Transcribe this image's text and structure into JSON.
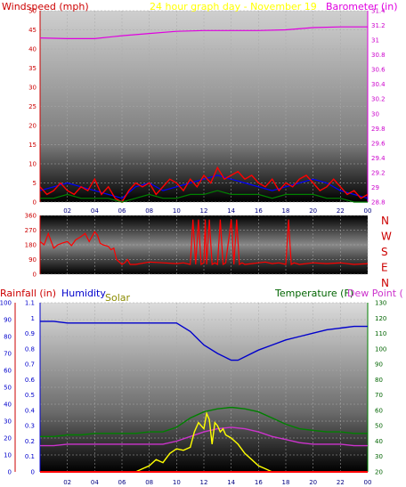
{
  "colors": {
    "wind": "#ff0000",
    "gust": "#0000ff",
    "avg_wind": "#008000",
    "barometer": "#e000e0",
    "title": "#ffff00",
    "rain": "#ff0000",
    "humidity": "#0000cc",
    "solar": "#ffff00",
    "temperature": "#008000",
    "dew_point": "#cc33cc",
    "hour_labels": "#000080"
  },
  "chart_data": [
    {
      "type": "line",
      "title": "24 hour graph day - November 19",
      "ylabel_left": "Windspeed (mph)",
      "ylabel_right": "Barometer (in)",
      "y_left_ticks": [
        "0",
        "5",
        "10",
        "15",
        "20",
        "25",
        "30",
        "35",
        "40",
        "45",
        "50"
      ],
      "y_right_ticks": [
        "28.8",
        "29",
        "29.2",
        "29.4",
        "29.6",
        "29.8",
        "30",
        "30.2",
        "30.4",
        "30.6",
        "30.8",
        "31",
        "31.2",
        "31.4"
      ],
      "ylim_left": [
        0,
        50
      ],
      "ylim_right": [
        28.8,
        31.4
      ],
      "x_ticks": [
        "02",
        "04",
        "06",
        "08",
        "10",
        "12",
        "14",
        "16",
        "18",
        "20",
        "22",
        "00"
      ],
      "xlim": [
        0,
        24
      ],
      "series": [
        {
          "role": "barometer",
          "axis": "right",
          "x": [
            0,
            2,
            4,
            6,
            8,
            10,
            12,
            14,
            16,
            18,
            20,
            22,
            24
          ],
          "values": [
            31.03,
            31.02,
            31.02,
            31.06,
            31.09,
            31.12,
            31.13,
            31.13,
            31.13,
            31.14,
            31.17,
            31.18,
            31.18
          ]
        },
        {
          "role": "gust",
          "axis": "left",
          "x": [
            0,
            1,
            2,
            3,
            4,
            5,
            6,
            7,
            8,
            9,
            10,
            11,
            12,
            13,
            14,
            15,
            16,
            17,
            18,
            19,
            20,
            21,
            22,
            23,
            24
          ],
          "values": [
            3,
            4,
            5,
            4,
            3,
            2,
            1,
            4,
            5,
            3,
            4,
            5,
            6,
            7,
            6,
            5,
            4,
            3,
            4,
            5,
            6,
            5,
            3,
            2,
            1
          ]
        },
        {
          "role": "wind",
          "axis": "left",
          "x": [
            0,
            0.5,
            1,
            1.5,
            2,
            2.5,
            3,
            3.5,
            4,
            4.5,
            5,
            5.5,
            6,
            6.5,
            7,
            7.5,
            8,
            8.5,
            9,
            9.5,
            10,
            10.5,
            11,
            11.5,
            12,
            12.5,
            13,
            13.5,
            14,
            14.5,
            15,
            15.5,
            16,
            16.5,
            17,
            17.5,
            18,
            18.5,
            19,
            19.5,
            20,
            20.5,
            21,
            21.5,
            22,
            22.5,
            23,
            23.5,
            24
          ],
          "values": [
            4,
            2,
            3,
            5,
            3,
            2,
            4,
            3,
            6,
            2,
            4,
            1,
            0,
            3,
            5,
            4,
            5,
            2,
            4,
            6,
            5,
            3,
            6,
            4,
            7,
            5,
            9,
            6,
            7,
            8,
            6,
            7,
            5,
            4,
            6,
            3,
            5,
            4,
            6,
            7,
            5,
            3,
            4,
            6,
            4,
            2,
            3,
            1,
            2
          ]
        },
        {
          "role": "avg_wind",
          "axis": "left",
          "x": [
            0,
            1,
            2,
            3,
            4,
            5,
            6,
            7,
            8,
            9,
            10,
            11,
            12,
            13,
            14,
            15,
            16,
            17,
            18,
            19,
            20,
            21,
            22,
            23,
            24
          ],
          "values": [
            1,
            1,
            2,
            1,
            1,
            1,
            0,
            1,
            2,
            1,
            1,
            2,
            2,
            3,
            2,
            2,
            2,
            1,
            2,
            2,
            2,
            1,
            1,
            0,
            0
          ]
        }
      ]
    },
    {
      "type": "line",
      "title": "",
      "ylabel_right": "N W S E N",
      "y_left_ticks": [
        "0",
        "90",
        "180",
        "270",
        "360"
      ],
      "ylim": [
        0,
        360
      ],
      "xlim": [
        0,
        24
      ],
      "series": [
        {
          "role": "wind_direction",
          "x": [
            0,
            0.3,
            0.6,
            1,
            1.3,
            1.6,
            2,
            2.3,
            2.6,
            3,
            3.3,
            3.6,
            4,
            4.2,
            4.4,
            4.6,
            5,
            5.2,
            5.4,
            5.6,
            6,
            6.2,
            6.4,
            6.6,
            7,
            8,
            9,
            10,
            10.5,
            11,
            11.2,
            11.4,
            11.6,
            11.8,
            12,
            12.1,
            12.2,
            12.4,
            12.6,
            12.8,
            13,
            13.2,
            13.4,
            13.6,
            14,
            14.2,
            14.4,
            14.6,
            14.8,
            15,
            15.5,
            16,
            16.5,
            17,
            17.5,
            18,
            18.2,
            18.4,
            18.6,
            19,
            20,
            21,
            22,
            23,
            24
          ],
          "values": [
            200,
            180,
            250,
            160,
            180,
            190,
            200,
            175,
            210,
            230,
            250,
            200,
            260,
            240,
            190,
            180,
            170,
            150,
            160,
            90,
            60,
            70,
            90,
            60,
            60,
            75,
            70,
            65,
            70,
            60,
            335,
            60,
            335,
            60,
            70,
            335,
            60,
            335,
            60,
            70,
            60,
            335,
            60,
            70,
            335,
            60,
            335,
            60,
            70,
            60,
            65,
            70,
            75,
            65,
            70,
            60,
            335,
            60,
            70,
            60,
            70,
            65,
            70,
            60,
            65
          ]
        }
      ]
    },
    {
      "type": "line",
      "title": "",
      "ylabel_left": "Rainfall (in)",
      "ylabel_humidity": "Humidity",
      "ylabel_solar": "Solar",
      "ylabel_right": "Temperature (F)",
      "ylabel_dew": "Dew Point (",
      "y_rain_ticks": [
        "0",
        "0.1",
        "0.2",
        "0.3",
        "0.4",
        "0.5",
        "0.6",
        "0.7",
        "0.8",
        "0.9",
        "1",
        "1.1"
      ],
      "y_humidity_ticks": [
        "0",
        "10",
        "20",
        "30",
        "40",
        "50",
        "60",
        "70",
        "80",
        "90",
        "100"
      ],
      "y_temp_ticks": [
        "20",
        "30",
        "40",
        "50",
        "60",
        "70",
        "80",
        "90",
        "100",
        "110",
        "120",
        "130"
      ],
      "ylim_humidity": [
        0,
        100
      ],
      "ylim_temp": [
        20,
        130
      ],
      "ylim_rain": [
        0,
        1.1
      ],
      "x_ticks": [
        "02",
        "04",
        "06",
        "08",
        "10",
        "12",
        "14",
        "16",
        "18",
        "20",
        "22",
        "00"
      ],
      "xlim": [
        0,
        24
      ],
      "series": [
        {
          "role": "humidity",
          "axis": "humidity",
          "x": [
            0,
            1,
            2,
            3,
            4,
            5,
            6,
            7,
            8,
            9,
            10,
            11,
            12,
            13,
            14,
            14.5,
            15,
            16,
            17,
            18,
            19,
            20,
            21,
            22,
            23,
            24
          ],
          "values": [
            89,
            89,
            88,
            88,
            88,
            88,
            88,
            88,
            88,
            88,
            88,
            83,
            75,
            70,
            66,
            66,
            68,
            72,
            75,
            78,
            80,
            82,
            84,
            85,
            86,
            86
          ]
        },
        {
          "role": "temperature",
          "axis": "temp",
          "x": [
            0,
            1,
            2,
            3,
            4,
            5,
            6,
            7,
            8,
            9,
            10,
            11,
            12,
            13,
            14,
            15,
            16,
            17,
            18,
            19,
            20,
            21,
            22,
            23,
            24
          ],
          "values": [
            43,
            43,
            44,
            44,
            45,
            45,
            45,
            45,
            46,
            46,
            49,
            55,
            59,
            61,
            62,
            61,
            59,
            55,
            51,
            48,
            47,
            46,
            46,
            45,
            45
          ]
        },
        {
          "role": "dew_point",
          "axis": "temp",
          "x": [
            0,
            1,
            2,
            3,
            4,
            5,
            6,
            7,
            8,
            9,
            10,
            11,
            12,
            13,
            14,
            15,
            16,
            17,
            18,
            19,
            20,
            21,
            22,
            23,
            24
          ],
          "values": [
            37,
            37,
            38,
            38,
            38,
            38,
            38,
            38,
            38,
            38,
            40,
            43,
            46,
            48,
            49,
            48,
            46,
            43,
            41,
            39,
            38,
            38,
            38,
            37,
            37
          ]
        },
        {
          "role": "solar",
          "axis": "rain",
          "x": [
            7.0,
            7.5,
            8,
            8.5,
            9,
            9.5,
            10,
            10.5,
            11,
            11.3,
            11.6,
            12,
            12.2,
            12.4,
            12.6,
            12.8,
            13,
            13.2,
            13.4,
            13.6,
            14,
            14.5,
            15,
            15.5,
            16,
            16.5,
            17
          ],
          "values": [
            0,
            0.02,
            0.04,
            0.08,
            0.06,
            0.12,
            0.15,
            0.14,
            0.16,
            0.26,
            0.32,
            0.28,
            0.38,
            0.34,
            0.18,
            0.32,
            0.3,
            0.26,
            0.28,
            0.24,
            0.22,
            0.18,
            0.12,
            0.08,
            0.04,
            0.02,
            0
          ]
        },
        {
          "role": "rain",
          "axis": "rain",
          "x": [
            0,
            24
          ],
          "values": [
            0,
            0
          ]
        }
      ]
    }
  ]
}
